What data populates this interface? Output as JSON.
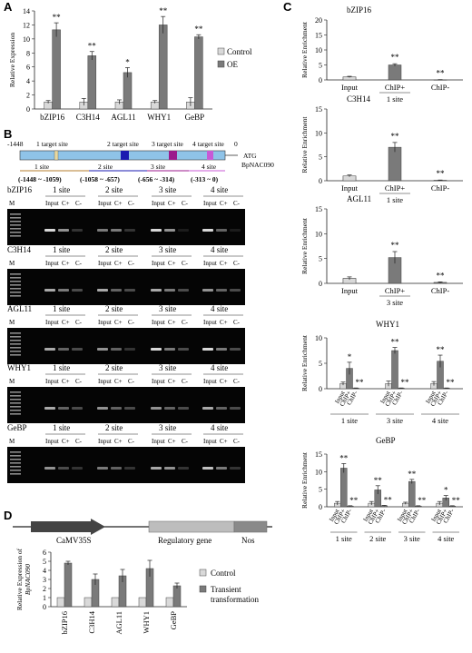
{
  "panels": {
    "A": {
      "letter": "A",
      "ylabel": "Relative Expression",
      "yticks": [
        0,
        2,
        4,
        6,
        8,
        10,
        12,
        14
      ],
      "ylim": [
        0,
        14
      ],
      "legend": [
        "Control",
        "OE"
      ],
      "categories": [
        "bZIP16",
        "C3H14",
        "AGL11",
        "WHY1",
        "GeBP"
      ],
      "series": [
        {
          "name": "Control",
          "values": [
            1.0,
            1.0,
            1.0,
            1.0,
            1.0
          ],
          "errors": [
            0.2,
            0.5,
            0.3,
            0.2,
            0.6
          ]
        },
        {
          "name": "OE",
          "values": [
            11.3,
            7.6,
            5.2,
            12.0,
            10.3
          ],
          "errors": [
            1.0,
            0.6,
            0.7,
            1.2,
            0.3
          ]
        }
      ],
      "significance": [
        "**",
        "**",
        "*",
        "**",
        "**"
      ]
    },
    "B": {
      "letter": "B",
      "scale_left": "-1448",
      "scale_right": "0",
      "site_header": "1 target site",
      "header2": "2 target site",
      "header3": "3 target site",
      "header4": "4 target site",
      "atg": "ATG",
      "gene": "BpNAC090",
      "sites": [
        "1 site",
        "2 site",
        "3 site",
        "4 site"
      ],
      "ranges": [
        "(-1448 ~ -1059)",
        "(-1058 ~ -657)",
        "(-656 ~ -314)",
        "(-313 ~ 0)"
      ],
      "gels": [
        "bZIP16",
        "C3H14",
        "AGL11",
        "WHY1",
        "GeBP"
      ],
      "lane_labels": [
        "Input",
        "C+",
        "C-"
      ],
      "marker": "M"
    },
    "C": {
      "letter": "C",
      "ylabel": "Relative Enrichment",
      "charts": [
        {
          "title": "bZIP16",
          "categories": [
            "Input",
            "ChIP+",
            "ChIP-"
          ],
          "values": [
            1.0,
            5.0,
            0.05
          ],
          "errors": [
            0.2,
            0.4,
            0.05
          ],
          "sig": [
            "",
            "**",
            "**"
          ],
          "ylim": [
            0,
            20
          ],
          "yticks": [
            0,
            5,
            10,
            15,
            20
          ],
          "site": "1 site"
        },
        {
          "title": "C3H14",
          "categories": [
            "Input",
            "ChIP+",
            "ChIP-"
          ],
          "values": [
            1.0,
            7.0,
            0.1
          ],
          "errors": [
            0.2,
            1.0,
            0.05
          ],
          "sig": [
            "",
            "**",
            "**"
          ],
          "ylim": [
            0,
            15
          ],
          "yticks": [
            0,
            5,
            10,
            15
          ],
          "site": "1 site"
        },
        {
          "title": "AGL11",
          "categories": [
            "Input",
            "ChIP+",
            "ChIP-"
          ],
          "values": [
            1.0,
            5.2,
            0.2
          ],
          "errors": [
            0.3,
            1.2,
            0.1
          ],
          "sig": [
            "",
            "**",
            "**"
          ],
          "ylim": [
            0,
            15
          ],
          "yticks": [
            0,
            5,
            10,
            15
          ],
          "site": "3 site"
        }
      ],
      "grouped": [
        {
          "title": "WHY1",
          "ylim": [
            0,
            10
          ],
          "yticks": [
            0,
            5,
            10
          ],
          "sites": [
            "1 site",
            "3 site",
            "4 site"
          ],
          "groups": [
            {
              "values": [
                1.0,
                4.0,
                0.1
              ],
              "errors": [
                0.3,
                1.2,
                0.05
              ],
              "sig": [
                "",
                "*",
                "**"
              ]
            },
            {
              "values": [
                1.0,
                7.5,
                0.1
              ],
              "errors": [
                0.5,
                0.6,
                0.05
              ],
              "sig": [
                "",
                "**",
                "**"
              ]
            },
            {
              "values": [
                1.0,
                5.4,
                0.1
              ],
              "errors": [
                0.4,
                1.2,
                0.05
              ],
              "sig": [
                "",
                "**",
                "**"
              ]
            }
          ]
        },
        {
          "title": "GeBP",
          "ylim": [
            0,
            15
          ],
          "yticks": [
            0,
            5,
            10,
            15
          ],
          "sites": [
            "1 site",
            "2 site",
            "3 site",
            "4 site"
          ],
          "groups": [
            {
              "values": [
                1.0,
                11.0,
                0.2
              ],
              "errors": [
                0.5,
                1.3,
                0.1
              ],
              "sig": [
                "",
                "**",
                "**"
              ]
            },
            {
              "values": [
                1.0,
                4.8,
                0.3
              ],
              "errors": [
                0.5,
                1.2,
                0.1
              ],
              "sig": [
                "",
                "**",
                "**"
              ]
            },
            {
              "values": [
                1.0,
                7.2,
                0.2
              ],
              "errors": [
                0.3,
                0.6,
                0.1
              ],
              "sig": [
                "",
                "**",
                "**"
              ]
            },
            {
              "values": [
                1.0,
                2.5,
                0.2
              ],
              "errors": [
                0.5,
                0.7,
                0.1
              ],
              "sig": [
                "",
                "*",
                "**"
              ]
            }
          ]
        }
      ],
      "cat_labels": [
        "Input",
        "ChIP+",
        "ChIP-"
      ]
    },
    "D": {
      "letter": "D",
      "construct": [
        "CaMV35S",
        "Regulatory gene",
        "Nos"
      ],
      "ylabel": "Relative Expression of BpNAC090",
      "yticks": [
        0,
        1,
        2,
        3,
        4,
        5,
        6
      ],
      "ylim": [
        0,
        6
      ],
      "legend": [
        "Control",
        "Transient transformation"
      ],
      "categories": [
        "bZIP16",
        "C3H14",
        "AGL11",
        "WHY1",
        "GeBP"
      ],
      "series": [
        {
          "name": "Control",
          "values": [
            1.0,
            1.0,
            1.0,
            1.0,
            1.0
          ],
          "errors": [
            0,
            0,
            0,
            0,
            0
          ]
        },
        {
          "name": "Transient transformation",
          "values": [
            4.8,
            3.0,
            3.4,
            4.2,
            2.3
          ],
          "errors": [
            0.2,
            0.6,
            0.7,
            0.9,
            0.3
          ]
        }
      ]
    }
  },
  "chart_data": [
    {
      "type": "bar",
      "title": "",
      "ylabel": "Relative Expression",
      "categories": [
        "bZIP16",
        "C3H14",
        "AGL11",
        "WHY1",
        "GeBP"
      ],
      "ylim": [
        0,
        14
      ],
      "series": [
        {
          "name": "Control",
          "values": [
            1.0,
            1.0,
            1.0,
            1.0,
            1.0
          ]
        },
        {
          "name": "OE",
          "values": [
            11.3,
            7.6,
            5.2,
            12.0,
            10.3
          ]
        }
      ]
    },
    {
      "type": "bar",
      "title": "bZIP16",
      "ylabel": "Relative Enrichment",
      "categories": [
        "Input",
        "ChIP+",
        "ChIP-"
      ],
      "values": [
        1.0,
        5.0,
        0.05
      ],
      "ylim": [
        0,
        20
      ]
    },
    {
      "type": "bar",
      "title": "C3H14",
      "ylabel": "Relative Enrichment",
      "categories": [
        "Input",
        "ChIP+",
        "ChIP-"
      ],
      "values": [
        1.0,
        7.0,
        0.1
      ],
      "ylim": [
        0,
        15
      ]
    },
    {
      "type": "bar",
      "title": "AGL11",
      "ylabel": "Relative Enrichment",
      "categories": [
        "Input",
        "ChIP+",
        "ChIP-"
      ],
      "values": [
        1.0,
        5.2,
        0.2
      ],
      "ylim": [
        0,
        15
      ]
    },
    {
      "type": "bar",
      "title": "WHY1",
      "ylabel": "Relative Enrichment",
      "categories": [
        "1 site",
        "3 site",
        "4 site"
      ],
      "ylim": [
        0,
        10
      ],
      "series": [
        {
          "name": "Input",
          "values": [
            1.0,
            1.0,
            1.0
          ]
        },
        {
          "name": "ChIP+",
          "values": [
            4.0,
            7.5,
            5.4
          ]
        },
        {
          "name": "ChIP-",
          "values": [
            0.1,
            0.1,
            0.1
          ]
        }
      ]
    },
    {
      "type": "bar",
      "title": "GeBP",
      "ylabel": "Relative Enrichment",
      "categories": [
        "1 site",
        "2 site",
        "3 site",
        "4 site"
      ],
      "ylim": [
        0,
        15
      ],
      "series": [
        {
          "name": "Input",
          "values": [
            1.0,
            1.0,
            1.0,
            1.0
          ]
        },
        {
          "name": "ChIP+",
          "values": [
            11.0,
            4.8,
            7.2,
            2.5
          ]
        },
        {
          "name": "ChIP-",
          "values": [
            0.2,
            0.3,
            0.2,
            0.2
          ]
        }
      ]
    },
    {
      "type": "bar",
      "title": "",
      "ylabel": "Relative Expression of BpNAC090",
      "categories": [
        "bZIP16",
        "C3H14",
        "AGL11",
        "WHY1",
        "GeBP"
      ],
      "ylim": [
        0,
        6
      ],
      "series": [
        {
          "name": "Control",
          "values": [
            1.0,
            1.0,
            1.0,
            1.0,
            1.0
          ]
        },
        {
          "name": "Transient transformation",
          "values": [
            4.8,
            3.0,
            3.4,
            4.2,
            2.3
          ]
        }
      ]
    }
  ]
}
